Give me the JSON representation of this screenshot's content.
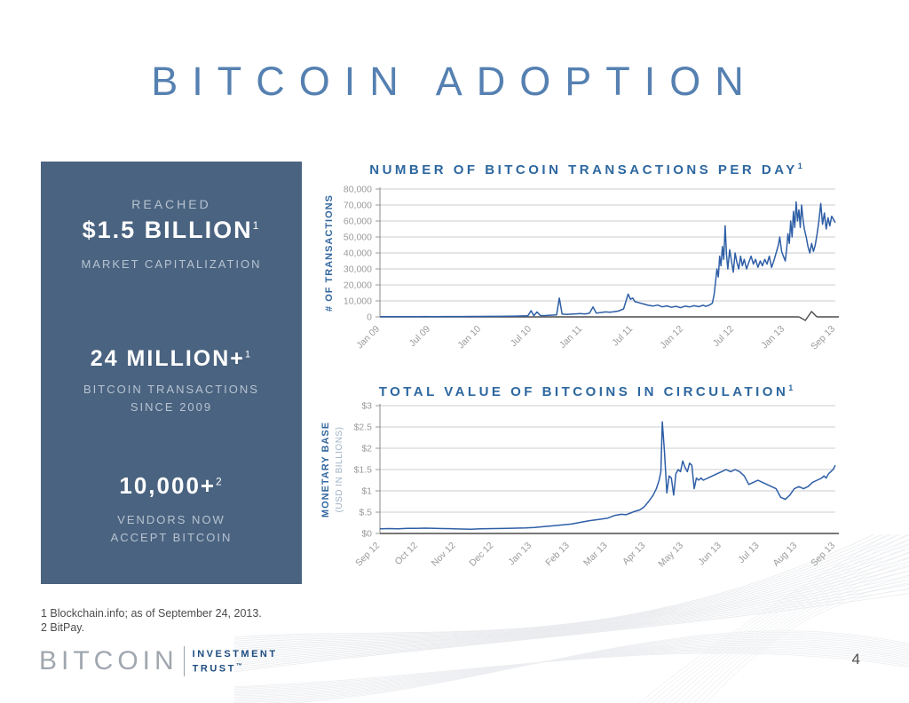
{
  "slide": {
    "title": "BITCOIN ADOPTION",
    "page_number": "4",
    "footnotes": [
      "1 Blockchain.info; as of September 24, 2013.",
      "2 BitPay."
    ],
    "logo": {
      "brand": "BITCOIN",
      "line1": "INVESTMENT",
      "line2": "TRUST",
      "tm": "™"
    }
  },
  "stats_panel": {
    "background": "#4a6380",
    "items": [
      {
        "pre": "REACHED",
        "value": "$1.5 BILLION",
        "sup": "1",
        "post": "MARKET CAPITALIZATION"
      },
      {
        "value": "24 MILLION+",
        "sup": "1",
        "post": "BITCOIN TRANSACTIONS",
        "post2": "SINCE 2009"
      },
      {
        "value": "10,000+",
        "sup": "2",
        "post": "VENDORS NOW",
        "post2": "ACCEPT BITCOIN"
      }
    ]
  },
  "chart_data": [
    {
      "type": "line",
      "title": "NUMBER OF BITCOIN TRANSACTIONS PER DAY",
      "title_sup": "1",
      "ylabel": "# OF TRANSACTIONS",
      "color": "#2e5ea6",
      "ylim": [
        0,
        80000
      ],
      "grid": true,
      "axis_break_t": 0.94,
      "yticks": [
        {
          "v": 0,
          "label": "0"
        },
        {
          "v": 10000,
          "label": "10,000"
        },
        {
          "v": 20000,
          "label": "20,000"
        },
        {
          "v": 30000,
          "label": "30,000"
        },
        {
          "v": 40000,
          "label": "40,000"
        },
        {
          "v": 50000,
          "label": "50,000"
        },
        {
          "v": 60000,
          "label": "60,000"
        },
        {
          "v": 70000,
          "label": "70,000"
        },
        {
          "v": 80000,
          "label": "80,000"
        }
      ],
      "xticks": [
        {
          "t": 0,
          "label": "Jan 09"
        },
        {
          "t": 0.1111,
          "label": "Jul 09"
        },
        {
          "t": 0.2222,
          "label": "Jan 10"
        },
        {
          "t": 0.3333,
          "label": "Jul 10"
        },
        {
          "t": 0.4444,
          "label": "Jan 11"
        },
        {
          "t": 0.5556,
          "label": "Jul 11"
        },
        {
          "t": 0.6667,
          "label": "Jan 12"
        },
        {
          "t": 0.7778,
          "label": "Jul 12"
        },
        {
          "t": 0.8889,
          "label": "Jan 13"
        },
        {
          "t": 1,
          "label": "Sep 13"
        }
      ],
      "points": [
        [
          0,
          100
        ],
        [
          0.02,
          150
        ],
        [
          0.04,
          120
        ],
        [
          0.06,
          180
        ],
        [
          0.08,
          150
        ],
        [
          0.1,
          200
        ],
        [
          0.12,
          180
        ],
        [
          0.14,
          220
        ],
        [
          0.16,
          200
        ],
        [
          0.18,
          250
        ],
        [
          0.2,
          280
        ],
        [
          0.22,
          300
        ],
        [
          0.24,
          320
        ],
        [
          0.26,
          350
        ],
        [
          0.28,
          400
        ],
        [
          0.3,
          500
        ],
        [
          0.315,
          600
        ],
        [
          0.325,
          700
        ],
        [
          0.332,
          3900
        ],
        [
          0.338,
          800
        ],
        [
          0.345,
          3100
        ],
        [
          0.352,
          900
        ],
        [
          0.36,
          800
        ],
        [
          0.37,
          950
        ],
        [
          0.38,
          1100
        ],
        [
          0.388,
          1300
        ],
        [
          0.394,
          11800
        ],
        [
          0.4,
          1800
        ],
        [
          0.41,
          1500
        ],
        [
          0.42,
          1700
        ],
        [
          0.43,
          1900
        ],
        [
          0.44,
          2100
        ],
        [
          0.45,
          1800
        ],
        [
          0.46,
          2300
        ],
        [
          0.468,
          6200
        ],
        [
          0.475,
          2400
        ],
        [
          0.485,
          2700
        ],
        [
          0.495,
          3100
        ],
        [
          0.505,
          2900
        ],
        [
          0.515,
          3300
        ],
        [
          0.525,
          3800
        ],
        [
          0.535,
          5000
        ],
        [
          0.545,
          14300
        ],
        [
          0.55,
          11000
        ],
        [
          0.555,
          11800
        ],
        [
          0.56,
          9500
        ],
        [
          0.57,
          8800
        ],
        [
          0.58,
          8000
        ],
        [
          0.59,
          7200
        ],
        [
          0.6,
          6800
        ],
        [
          0.61,
          7400
        ],
        [
          0.62,
          6300
        ],
        [
          0.63,
          6900
        ],
        [
          0.64,
          6000
        ],
        [
          0.65,
          6600
        ],
        [
          0.66,
          5800
        ],
        [
          0.67,
          6700
        ],
        [
          0.68,
          6200
        ],
        [
          0.69,
          7000
        ],
        [
          0.7,
          6400
        ],
        [
          0.71,
          7300
        ],
        [
          0.715,
          6600
        ],
        [
          0.72,
          7000
        ],
        [
          0.725,
          7600
        ],
        [
          0.73,
          8600
        ],
        [
          0.734,
          14000
        ],
        [
          0.737,
          22000
        ],
        [
          0.74,
          30000
        ],
        [
          0.743,
          25000
        ],
        [
          0.746,
          38000
        ],
        [
          0.749,
          32000
        ],
        [
          0.752,
          44000
        ],
        [
          0.755,
          36000
        ],
        [
          0.758,
          57000
        ],
        [
          0.761,
          39000
        ],
        [
          0.764,
          30000
        ],
        [
          0.768,
          42000
        ],
        [
          0.772,
          35000
        ],
        [
          0.776,
          28000
        ],
        [
          0.78,
          40000
        ],
        [
          0.784,
          34000
        ],
        [
          0.788,
          30000
        ],
        [
          0.792,
          38000
        ],
        [
          0.796,
          32000
        ],
        [
          0.8,
          36000
        ],
        [
          0.805,
          30000
        ],
        [
          0.81,
          34000
        ],
        [
          0.815,
          38000
        ],
        [
          0.82,
          33000
        ],
        [
          0.825,
          36000
        ],
        [
          0.83,
          31000
        ],
        [
          0.835,
          35000
        ],
        [
          0.84,
          32000
        ],
        [
          0.845,
          36000
        ],
        [
          0.85,
          33000
        ],
        [
          0.855,
          38000
        ],
        [
          0.86,
          31000
        ],
        [
          0.865,
          35000
        ],
        [
          0.87,
          40000
        ],
        [
          0.875,
          45000
        ],
        [
          0.878,
          50000
        ],
        [
          0.882,
          41000
        ],
        [
          0.886,
          38000
        ],
        [
          0.89,
          35000
        ],
        [
          0.893,
          42000
        ],
        [
          0.896,
          52000
        ],
        [
          0.899,
          46000
        ],
        [
          0.902,
          60000
        ],
        [
          0.905,
          50000
        ],
        [
          0.908,
          66000
        ],
        [
          0.911,
          56000
        ],
        [
          0.914,
          72000
        ],
        [
          0.917,
          60000
        ],
        [
          0.92,
          67000
        ],
        [
          0.923,
          56000
        ],
        [
          0.926,
          70000
        ],
        [
          0.929,
          61000
        ],
        [
          0.932,
          55000
        ],
        [
          0.936,
          50000
        ],
        [
          0.94,
          44000
        ],
        [
          0.944,
          40000
        ],
        [
          0.948,
          46000
        ],
        [
          0.952,
          41000
        ],
        [
          0.956,
          45000
        ],
        [
          0.96,
          52000
        ],
        [
          0.964,
          60000
        ],
        [
          0.968,
          71000
        ],
        [
          0.972,
          58000
        ],
        [
          0.976,
          65000
        ],
        [
          0.98,
          55000
        ],
        [
          0.984,
          62000
        ],
        [
          0.988,
          57000
        ],
        [
          0.992,
          63000
        ],
        [
          1,
          59000
        ]
      ]
    },
    {
      "type": "line",
      "title": "TOTAL VALUE OF BITCOINS IN CIRCULATION",
      "title_sup": "1",
      "ylabel": "MONETARY BASE",
      "ylabel_sub": "(USD IN BILLIONS)",
      "color": "#2e5ea6",
      "ylim": [
        0,
        3
      ],
      "grid": true,
      "yticks": [
        {
          "v": 0,
          "label": "$0"
        },
        {
          "v": 0.5,
          "label": "$.5"
        },
        {
          "v": 1,
          "label": "$1"
        },
        {
          "v": 1.5,
          "label": "$1.5"
        },
        {
          "v": 2,
          "label": "$2"
        },
        {
          "v": 2.5,
          "label": "$2.5"
        },
        {
          "v": 3,
          "label": "$3"
        }
      ],
      "xticks": [
        {
          "t": 0,
          "label": "Sep 12"
        },
        {
          "t": 0.0833,
          "label": "Oct 12"
        },
        {
          "t": 0.1667,
          "label": "Nov 12"
        },
        {
          "t": 0.25,
          "label": "Dec 12"
        },
        {
          "t": 0.3333,
          "label": "Jan 13"
        },
        {
          "t": 0.4167,
          "label": "Feb 13"
        },
        {
          "t": 0.5,
          "label": "Mar 13"
        },
        {
          "t": 0.5833,
          "label": "Apr 13"
        },
        {
          "t": 0.6667,
          "label": "May 13"
        },
        {
          "t": 0.75,
          "label": "Jun 13"
        },
        {
          "t": 0.8333,
          "label": "Jul 13"
        },
        {
          "t": 0.9167,
          "label": "Aug 13"
        },
        {
          "t": 1,
          "label": "Sep 13"
        }
      ],
      "points": [
        [
          0,
          0.11
        ],
        [
          0.02,
          0.115
        ],
        [
          0.04,
          0.11
        ],
        [
          0.06,
          0.12
        ],
        [
          0.08,
          0.12
        ],
        [
          0.1,
          0.125
        ],
        [
          0.12,
          0.12
        ],
        [
          0.14,
          0.115
        ],
        [
          0.16,
          0.11
        ],
        [
          0.18,
          0.105
        ],
        [
          0.2,
          0.1
        ],
        [
          0.22,
          0.11
        ],
        [
          0.25,
          0.115
        ],
        [
          0.28,
          0.12
        ],
        [
          0.3,
          0.125
        ],
        [
          0.32,
          0.13
        ],
        [
          0.34,
          0.14
        ],
        [
          0.36,
          0.16
        ],
        [
          0.38,
          0.18
        ],
        [
          0.4,
          0.2
        ],
        [
          0.42,
          0.22
        ],
        [
          0.44,
          0.26
        ],
        [
          0.46,
          0.3
        ],
        [
          0.48,
          0.33
        ],
        [
          0.5,
          0.36
        ],
        [
          0.515,
          0.42
        ],
        [
          0.53,
          0.45
        ],
        [
          0.54,
          0.44
        ],
        [
          0.55,
          0.48
        ],
        [
          0.56,
          0.52
        ],
        [
          0.57,
          0.55
        ],
        [
          0.58,
          0.62
        ],
        [
          0.59,
          0.75
        ],
        [
          0.6,
          0.9
        ],
        [
          0.607,
          1.05
        ],
        [
          0.613,
          1.25
        ],
        [
          0.617,
          1.45
        ],
        [
          0.62,
          2.62
        ],
        [
          0.625,
          1.9
        ],
        [
          0.63,
          0.95
        ],
        [
          0.635,
          1.35
        ],
        [
          0.64,
          1.3
        ],
        [
          0.645,
          0.9
        ],
        [
          0.65,
          1.4
        ],
        [
          0.655,
          1.5
        ],
        [
          0.66,
          1.45
        ],
        [
          0.665,
          1.7
        ],
        [
          0.67,
          1.55
        ],
        [
          0.675,
          1.45
        ],
        [
          0.68,
          1.65
        ],
        [
          0.685,
          1.6
        ],
        [
          0.69,
          1.05
        ],
        [
          0.695,
          1.3
        ],
        [
          0.7,
          1.25
        ],
        [
          0.705,
          1.3
        ],
        [
          0.71,
          1.25
        ],
        [
          0.72,
          1.3
        ],
        [
          0.73,
          1.35
        ],
        [
          0.74,
          1.4
        ],
        [
          0.75,
          1.45
        ],
        [
          0.76,
          1.5
        ],
        [
          0.77,
          1.45
        ],
        [
          0.78,
          1.5
        ],
        [
          0.79,
          1.45
        ],
        [
          0.8,
          1.35
        ],
        [
          0.81,
          1.15
        ],
        [
          0.82,
          1.2
        ],
        [
          0.83,
          1.25
        ],
        [
          0.84,
          1.2
        ],
        [
          0.85,
          1.15
        ],
        [
          0.86,
          1.1
        ],
        [
          0.87,
          1.05
        ],
        [
          0.88,
          0.85
        ],
        [
          0.89,
          0.8
        ],
        [
          0.9,
          0.9
        ],
        [
          0.91,
          1.05
        ],
        [
          0.92,
          1.1
        ],
        [
          0.93,
          1.05
        ],
        [
          0.94,
          1.1
        ],
        [
          0.945,
          1.15
        ],
        [
          0.95,
          1.2
        ],
        [
          0.96,
          1.25
        ],
        [
          0.97,
          1.3
        ],
        [
          0.975,
          1.35
        ],
        [
          0.98,
          1.3
        ],
        [
          0.985,
          1.4
        ],
        [
          0.99,
          1.45
        ],
        [
          0.995,
          1.5
        ],
        [
          1,
          1.6
        ]
      ]
    }
  ]
}
